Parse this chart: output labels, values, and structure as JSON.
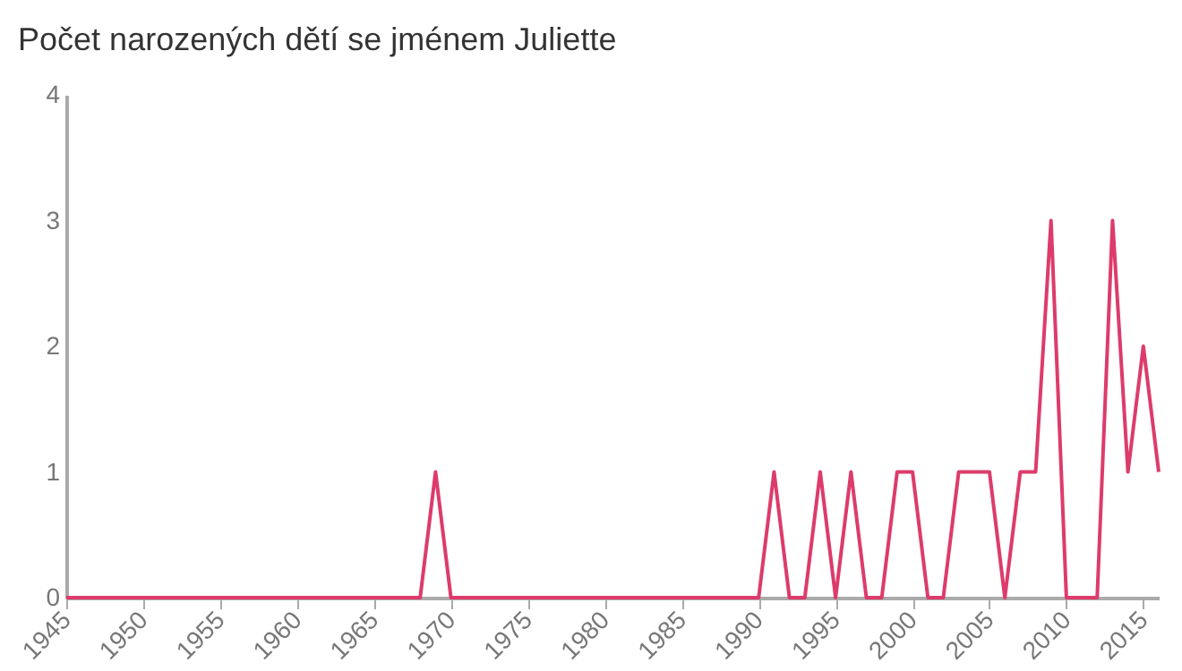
{
  "chart_data": {
    "type": "line",
    "title": "Počet narozených dětí se jménem Juliette",
    "x": [
      1945,
      1946,
      1947,
      1948,
      1949,
      1950,
      1951,
      1952,
      1953,
      1954,
      1955,
      1956,
      1957,
      1958,
      1959,
      1960,
      1961,
      1962,
      1963,
      1964,
      1965,
      1966,
      1967,
      1968,
      1969,
      1970,
      1971,
      1972,
      1973,
      1974,
      1975,
      1976,
      1977,
      1978,
      1979,
      1980,
      1981,
      1982,
      1983,
      1984,
      1985,
      1986,
      1987,
      1988,
      1989,
      1990,
      1991,
      1992,
      1993,
      1994,
      1995,
      1996,
      1997,
      1998,
      1999,
      2000,
      2001,
      2002,
      2003,
      2004,
      2005,
      2006,
      2007,
      2008,
      2009,
      2010,
      2011,
      2012,
      2013,
      2014,
      2015,
      2016
    ],
    "series": [
      {
        "color": "#dd3b6b",
        "values": [
          0,
          0,
          0,
          0,
          0,
          0,
          0,
          0,
          0,
          0,
          0,
          0,
          0,
          0,
          0,
          0,
          0,
          0,
          0,
          0,
          0,
          0,
          0,
          0,
          1,
          0,
          0,
          0,
          0,
          0,
          0,
          0,
          0,
          0,
          0,
          0,
          0,
          0,
          0,
          0,
          0,
          0,
          0,
          0,
          0,
          0,
          1,
          0,
          0,
          1,
          0,
          1,
          0,
          0,
          1,
          1,
          0,
          0,
          1,
          1,
          1,
          0,
          1,
          1,
          3,
          0,
          0,
          0,
          3,
          1,
          2,
          1
        ]
      }
    ],
    "xlim": [
      1945,
      2016
    ],
    "xticks": [
      1945,
      1950,
      1955,
      1960,
      1965,
      1970,
      1975,
      1980,
      1985,
      1990,
      1995,
      2000,
      2005,
      2010,
      2015
    ],
    "ylim": [
      0,
      4
    ],
    "yticks": [
      0,
      1,
      2,
      3,
      4
    ],
    "grid": false,
    "marker": "none",
    "line_style": "solid"
  }
}
